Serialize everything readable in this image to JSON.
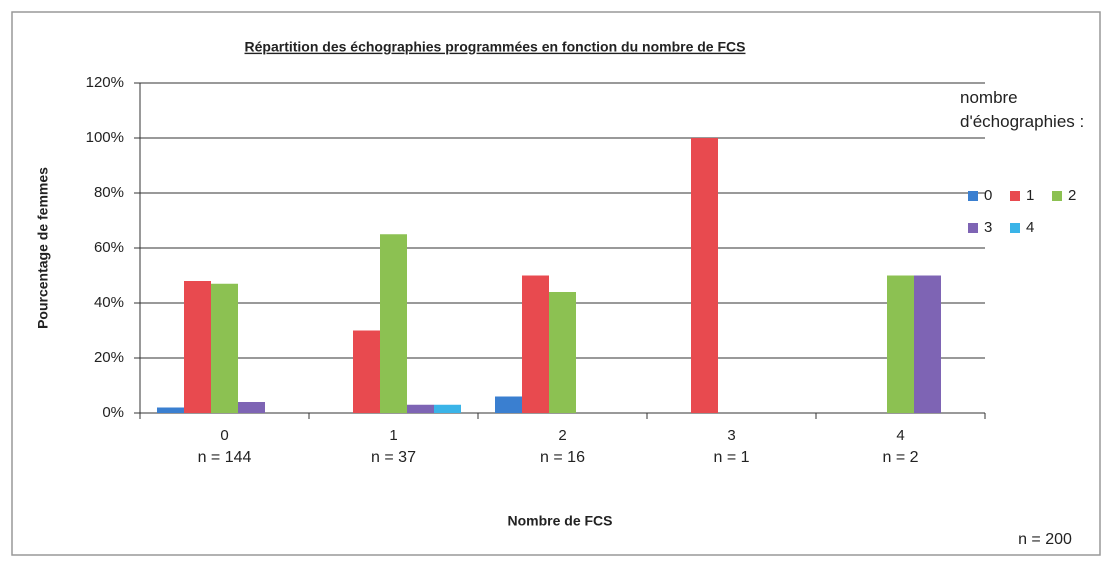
{
  "chart_data": {
    "type": "bar",
    "title": "Répartition des échographies  programmées en fonction du nombre de FCS",
    "x_label": "Nombre de FCS",
    "y_label": "Pourcentage de femmes",
    "legend_title": "nombre d'échographies :",
    "annotation": "n = 200",
    "categories": [
      "0",
      "1",
      "2",
      "3",
      "4"
    ],
    "category_notes": [
      "n = 144",
      "n = 37",
      "n = 16",
      "n = 1",
      "n = 2"
    ],
    "series": [
      {
        "name": "0",
        "color": "#3a7fd0",
        "values": [
          2,
          0,
          6,
          0,
          0
        ]
      },
      {
        "name": "1",
        "color": "#e84a4f",
        "values": [
          48,
          30,
          50,
          100,
          0
        ]
      },
      {
        "name": "2",
        "color": "#8cc152",
        "values": [
          47,
          65,
          44,
          0,
          50
        ]
      },
      {
        "name": "3",
        "color": "#7e64b4",
        "values": [
          4,
          3,
          0,
          0,
          50
        ]
      },
      {
        "name": "4",
        "color": "#3ab4e8",
        "values": [
          0,
          3,
          0,
          0,
          0
        ]
      }
    ],
    "ylim": [
      0,
      120
    ],
    "yticks": [
      {
        "value": 0,
        "label": "0%"
      },
      {
        "value": 20,
        "label": "20%"
      },
      {
        "value": 40,
        "label": "40%"
      },
      {
        "value": 60,
        "label": "60%"
      },
      {
        "value": 80,
        "label": "80%"
      },
      {
        "value": 100,
        "label": "100%"
      },
      {
        "value": 120,
        "label": "120%"
      }
    ],
    "grid": true,
    "legend": "right"
  }
}
